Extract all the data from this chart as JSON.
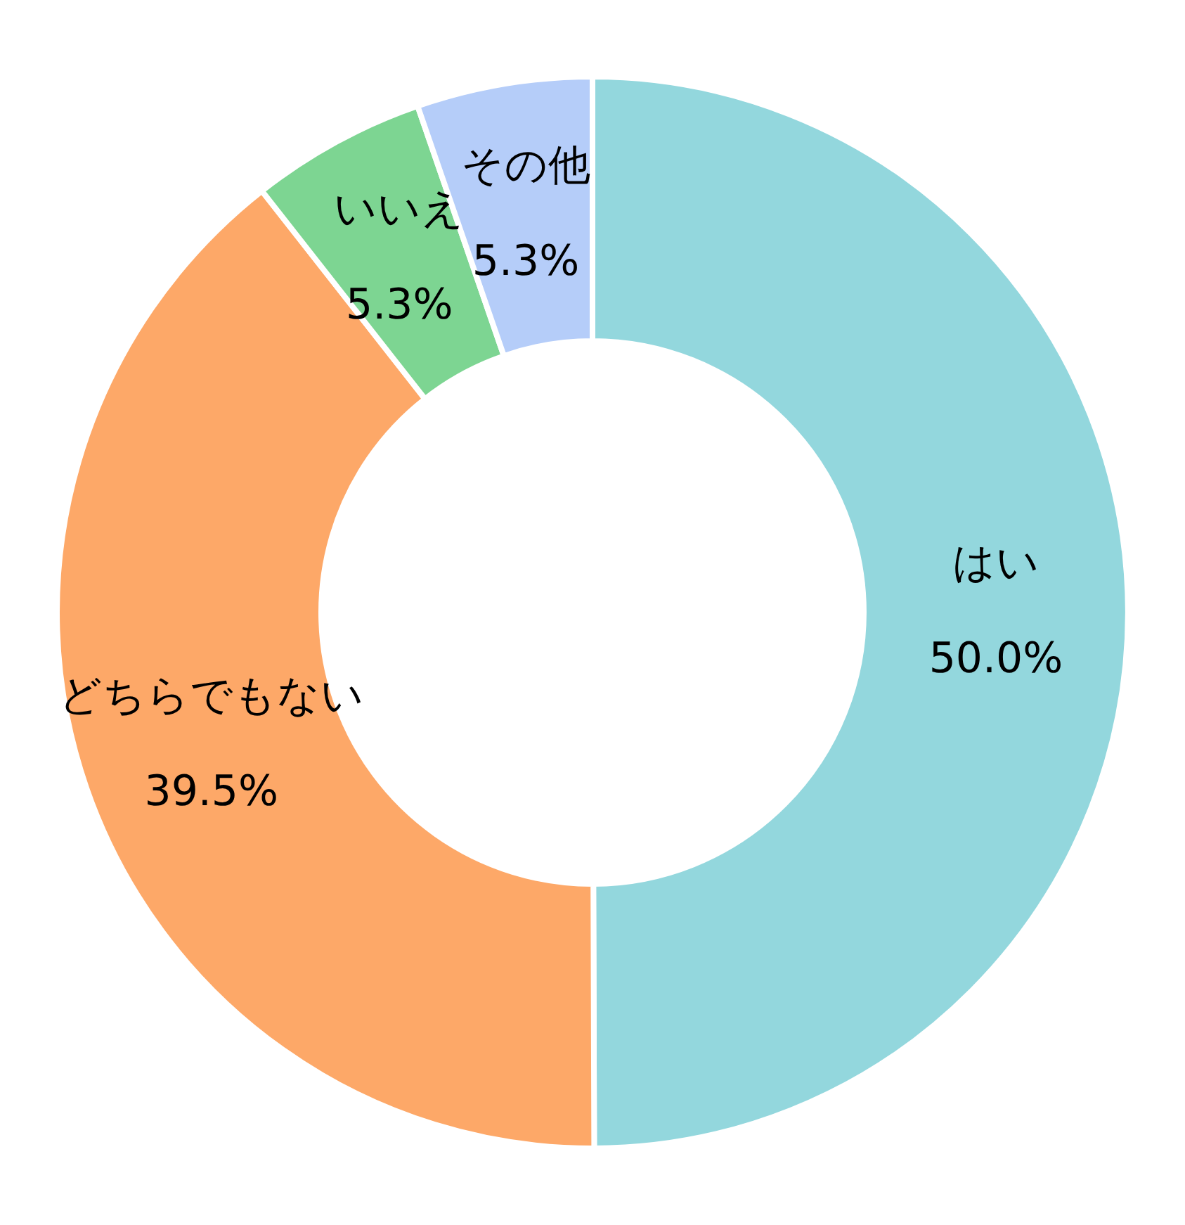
{
  "chart_data": {
    "type": "donut",
    "categories": [
      "はい",
      "どちらでもない",
      "いいえ",
      "その他"
    ],
    "values": [
      50.0,
      39.5,
      5.3,
      5.3
    ],
    "colors": [
      "#93d7dd",
      "#fda868",
      "#7dd592",
      "#b5cdf9"
    ],
    "value_labels": [
      "50.0%",
      "39.5%",
      "5.3%",
      "5.3%"
    ]
  }
}
